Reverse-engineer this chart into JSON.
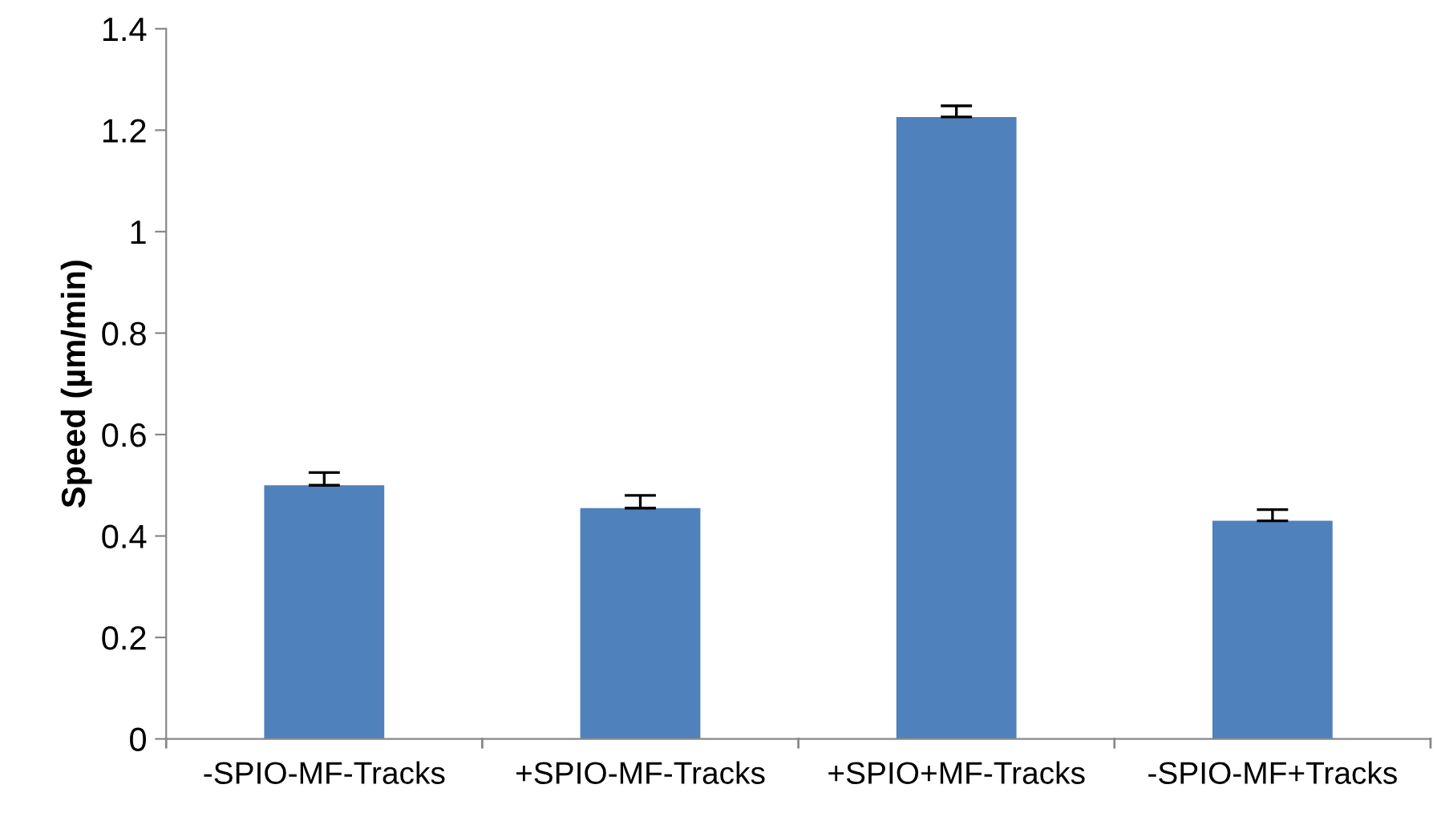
{
  "chart_data": {
    "type": "bar",
    "ylabel": "Speed (µm/min)",
    "categories": [
      "-SPIO-MF-Tracks",
      "+SPIO-MF-Tracks",
      "+SPIO+MF-Tracks",
      "-SPIO-MF+Tracks"
    ],
    "values": [
      0.5,
      0.455,
      1.226,
      0.43
    ],
    "errors": [
      [
        0.5,
        0.525
      ],
      [
        0.455,
        0.48
      ],
      [
        1.226,
        1.248
      ],
      [
        0.43,
        0.452
      ]
    ],
    "color": "#4f81bd",
    "ylim": [
      0,
      1.4
    ],
    "yticks": [
      0,
      0.2,
      0.4,
      0.6,
      0.8,
      1,
      1.2,
      1.4
    ],
    "grid": false,
    "legend": false
  }
}
